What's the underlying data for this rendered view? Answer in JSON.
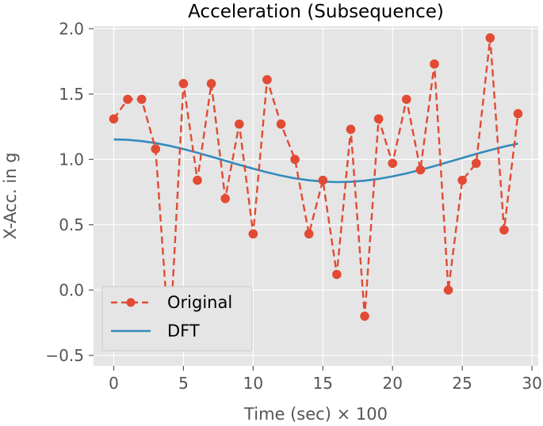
{
  "chart_data": {
    "type": "line",
    "title": "Acceleration (Subsequence)",
    "xlabel": "Time (sec) × 100",
    "ylabel": "X-Acc. in g",
    "xlim": [
      -1.45,
      30.45
    ],
    "ylim": [
      -0.58,
      2.02
    ],
    "xticks": [
      0,
      5,
      10,
      15,
      20,
      25,
      30
    ],
    "yticks": [
      -0.5,
      0.0,
      0.5,
      1.0,
      1.5,
      2.0
    ],
    "xtick_labels": [
      "0",
      "5",
      "10",
      "15",
      "20",
      "25",
      "30"
    ],
    "ytick_labels": [
      "−0.5",
      "0.0",
      "0.5",
      "1.0",
      "1.5",
      "2.0"
    ],
    "grid": true,
    "legend_position": "lower-left",
    "series": [
      {
        "name": "Original",
        "style": "dashed-markers",
        "color": "#E24A33",
        "x": [
          0,
          1,
          2,
          3,
          4,
          5,
          6,
          7,
          8,
          9,
          10,
          11,
          12,
          13,
          14,
          15,
          16,
          17,
          18,
          19,
          20,
          21,
          22,
          23,
          24,
          25,
          26,
          27,
          28,
          29
        ],
        "y": [
          1.31,
          1.46,
          1.46,
          1.08,
          -0.42,
          1.58,
          0.84,
          1.58,
          0.7,
          1.27,
          0.43,
          1.61,
          1.27,
          1.0,
          0.43,
          0.84,
          0.12,
          1.23,
          -0.2,
          1.31,
          0.97,
          1.46,
          0.92,
          1.73,
          0.0,
          0.84,
          0.97,
          1.93,
          0.46,
          1.35
        ]
      },
      {
        "name": "DFT",
        "style": "solid",
        "color": "#348ABD",
        "x": [
          0,
          1,
          2,
          3,
          4,
          5,
          6,
          7,
          8,
          9,
          10,
          11,
          12,
          13,
          14,
          15,
          16,
          17,
          18,
          19,
          20,
          21,
          22,
          23,
          24,
          25,
          26,
          27,
          28,
          29
        ],
        "y": [
          1.153,
          1.15,
          1.14,
          1.125,
          1.104,
          1.079,
          1.051,
          1.021,
          0.99,
          0.959,
          0.929,
          0.901,
          0.876,
          0.855,
          0.84,
          0.83,
          0.826,
          0.829,
          0.837,
          0.851,
          0.87,
          0.893,
          0.92,
          0.949,
          0.98,
          1.011,
          1.042,
          1.071,
          1.098,
          1.121
        ]
      }
    ]
  }
}
